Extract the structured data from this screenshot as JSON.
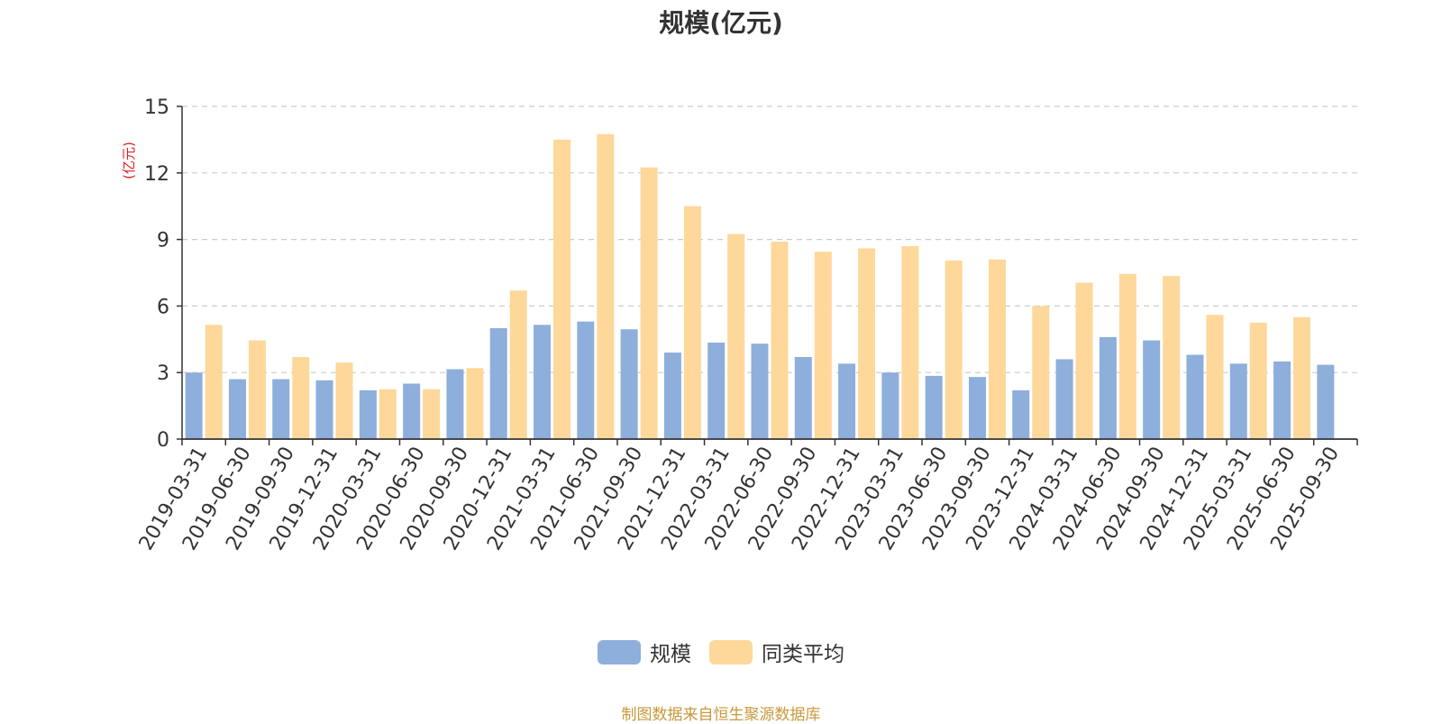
{
  "title": "规模(亿元)",
  "source": "制图数据来自恒生聚源数据库",
  "colors": {
    "series1": "#8eaedb",
    "series2": "#fdd89a",
    "unit_label": "#e02020"
  },
  "chart_data": {
    "type": "bar",
    "title": "规模(亿元)",
    "ylabel": "(亿元)",
    "ylim": [
      0,
      15
    ],
    "yticks": [
      0,
      3,
      6,
      9,
      12,
      15
    ],
    "grid": true,
    "legend_position": "bottom",
    "categories": [
      "2019-03-31",
      "2019-06-30",
      "2019-09-30",
      "2019-12-31",
      "2020-03-31",
      "2020-06-30",
      "2020-09-30",
      "2020-12-31",
      "2021-03-31",
      "2021-06-30",
      "2021-09-30",
      "2021-12-31",
      "2022-03-31",
      "2022-06-30",
      "2022-09-30",
      "2022-12-31",
      "2023-03-31",
      "2023-06-30",
      "2023-09-30",
      "2023-12-31",
      "2024-03-31",
      "2024-06-30",
      "2024-09-30",
      "2024-12-31",
      "2025-03-31",
      "2025-06-30",
      "2025-09-30"
    ],
    "series": [
      {
        "name": "规模",
        "values": [
          3.0,
          2.7,
          2.7,
          2.65,
          2.2,
          2.5,
          3.15,
          5.0,
          5.15,
          5.3,
          4.95,
          3.9,
          4.35,
          4.3,
          3.7,
          3.4,
          3.0,
          2.85,
          2.8,
          2.2,
          3.6,
          4.6,
          4.45,
          3.8,
          3.4,
          3.5,
          3.35
        ]
      },
      {
        "name": "同类平均",
        "values": [
          5.15,
          4.45,
          3.7,
          3.45,
          2.25,
          2.25,
          3.2,
          6.7,
          13.5,
          13.75,
          12.25,
          10.5,
          9.25,
          8.9,
          8.45,
          8.6,
          8.7,
          8.05,
          8.1,
          6.0,
          7.05,
          7.45,
          7.35,
          5.6,
          5.25,
          5.5,
          null
        ]
      }
    ]
  }
}
